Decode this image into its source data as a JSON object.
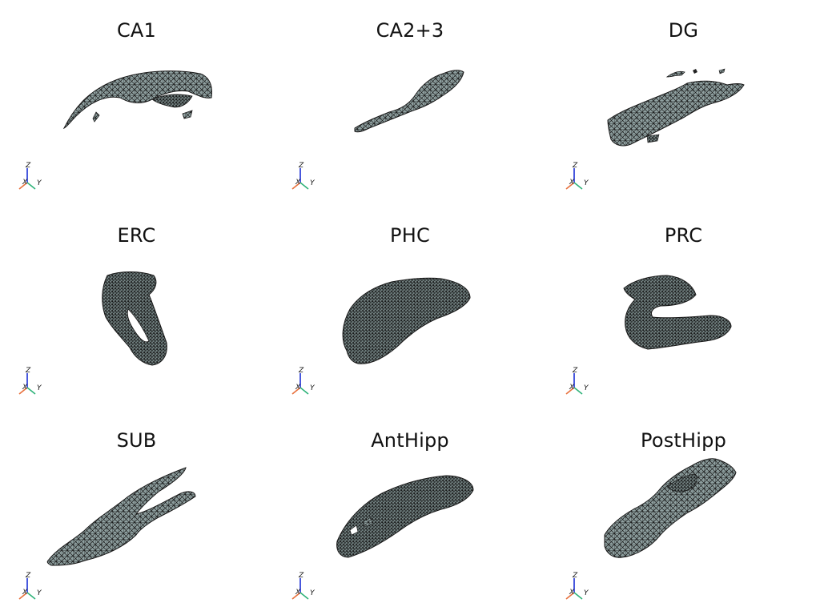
{
  "colors": {
    "mesh_fill": "#8a9a9a",
    "mesh_edge": "#1a1a1a",
    "axis_x": "#e8703c",
    "axis_y": "#2fb37a",
    "axis_z": "#1a2fd6"
  },
  "axes_labels": {
    "x": "X",
    "y": "Y",
    "z": "Z"
  },
  "panels": [
    {
      "title": "CA1"
    },
    {
      "title": "CA2+3"
    },
    {
      "title": "DG"
    },
    {
      "title": "ERC"
    },
    {
      "title": "PHC"
    },
    {
      "title": "PRC"
    },
    {
      "title": "SUB"
    },
    {
      "title": "AntHipp"
    },
    {
      "title": "PostHipp"
    }
  ]
}
